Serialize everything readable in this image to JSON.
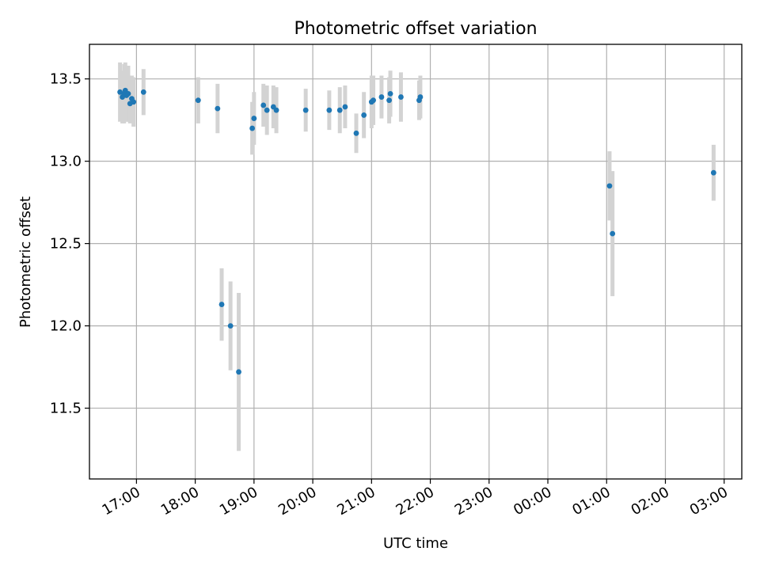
{
  "chart_data": {
    "type": "scatter",
    "title": "Photometric offset variation",
    "xlabel": "UTC time",
    "ylabel": "Photometric offset",
    "x_unit": "hours from 00:00 of the first day (UTC)",
    "xlim": [
      16.2,
      27.3
    ],
    "ylim": [
      11.07,
      13.71
    ],
    "x_ticks": [
      {
        "value": 17,
        "label": "17:00"
      },
      {
        "value": 18,
        "label": "18:00"
      },
      {
        "value": 19,
        "label": "19:00"
      },
      {
        "value": 20,
        "label": "20:00"
      },
      {
        "value": 21,
        "label": "21:00"
      },
      {
        "value": 22,
        "label": "22:00"
      },
      {
        "value": 23,
        "label": "23:00"
      },
      {
        "value": 24,
        "label": "00:00"
      },
      {
        "value": 25,
        "label": "01:00"
      },
      {
        "value": 26,
        "label": "02:00"
      },
      {
        "value": 27,
        "label": "03:00"
      }
    ],
    "y_ticks": [
      {
        "value": 11.5,
        "label": "11.5"
      },
      {
        "value": 12.0,
        "label": "12.0"
      },
      {
        "value": 12.5,
        "label": "12.5"
      },
      {
        "value": 13.0,
        "label": "13.0"
      },
      {
        "value": 13.5,
        "label": "13.5"
      }
    ],
    "grid": true,
    "colors": {
      "point": "#1f77b4",
      "errorbar": "#d3d3d3"
    },
    "points": [
      {
        "x": 16.72,
        "y": 13.42,
        "err": 0.18
      },
      {
        "x": 16.76,
        "y": 13.39,
        "err": 0.16
      },
      {
        "x": 16.79,
        "y": 13.41,
        "err": 0.18
      },
      {
        "x": 16.81,
        "y": 13.43,
        "err": 0.17
      },
      {
        "x": 16.83,
        "y": 13.4,
        "err": 0.16
      },
      {
        "x": 16.86,
        "y": 13.41,
        "err": 0.17
      },
      {
        "x": 16.89,
        "y": 13.35,
        "err": 0.12
      },
      {
        "x": 16.92,
        "y": 13.38,
        "err": 0.14
      },
      {
        "x": 16.95,
        "y": 13.36,
        "err": 0.15
      },
      {
        "x": 17.12,
        "y": 13.42,
        "err": 0.14
      },
      {
        "x": 18.05,
        "y": 13.37,
        "err": 0.14
      },
      {
        "x": 18.38,
        "y": 13.32,
        "err": 0.15
      },
      {
        "x": 18.45,
        "y": 12.13,
        "err": 0.22
      },
      {
        "x": 18.6,
        "y": 12.0,
        "err": 0.27
      },
      {
        "x": 18.74,
        "y": 11.72,
        "err": 0.48
      },
      {
        "x": 18.97,
        "y": 13.2,
        "err": 0.16
      },
      {
        "x": 19.0,
        "y": 13.26,
        "err": 0.16
      },
      {
        "x": 19.16,
        "y": 13.34,
        "err": 0.13
      },
      {
        "x": 19.22,
        "y": 13.31,
        "err": 0.15
      },
      {
        "x": 19.33,
        "y": 13.33,
        "err": 0.13
      },
      {
        "x": 19.38,
        "y": 13.31,
        "err": 0.14
      },
      {
        "x": 19.88,
        "y": 13.31,
        "err": 0.13
      },
      {
        "x": 20.28,
        "y": 13.31,
        "err": 0.12
      },
      {
        "x": 20.46,
        "y": 13.31,
        "err": 0.14
      },
      {
        "x": 20.55,
        "y": 13.33,
        "err": 0.13
      },
      {
        "x": 20.74,
        "y": 13.17,
        "err": 0.12
      },
      {
        "x": 20.87,
        "y": 13.28,
        "err": 0.14
      },
      {
        "x": 21.0,
        "y": 13.36,
        "err": 0.16
      },
      {
        "x": 21.03,
        "y": 13.37,
        "err": 0.15
      },
      {
        "x": 21.17,
        "y": 13.39,
        "err": 0.13
      },
      {
        "x": 21.3,
        "y": 13.37,
        "err": 0.14
      },
      {
        "x": 21.32,
        "y": 13.41,
        "err": 0.14
      },
      {
        "x": 21.5,
        "y": 13.39,
        "err": 0.15
      },
      {
        "x": 21.81,
        "y": 13.37,
        "err": 0.12
      },
      {
        "x": 21.83,
        "y": 13.39,
        "err": 0.13
      },
      {
        "x": 25.05,
        "y": 12.85,
        "err": 0.21
      },
      {
        "x": 25.1,
        "y": 12.56,
        "err": 0.38
      },
      {
        "x": 26.82,
        "y": 12.93,
        "err": 0.17
      }
    ]
  }
}
